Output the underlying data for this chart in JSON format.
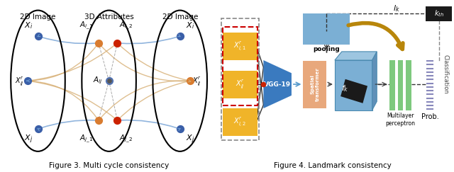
{
  "fig_width": 6.4,
  "fig_height": 2.43,
  "dpi": 100,
  "bg_color": "#ffffff",
  "left_title_text": "2D Image",
  "mid_title_text": "3D Attributes",
  "right_title_text": "2D Image",
  "fig3_caption": "Figure 3. Multi cycle consistency",
  "fig4_caption": "Figure 4. Landmark consistency",
  "ellipse_color": "#000000",
  "ellipse_lw": 1.5,
  "blue_dot": "#3a5fa8",
  "orange_dot": "#d97c30",
  "red_dot": "#cc2200",
  "gray_dot": "#555555",
  "arc_blue_color": "#6b9bd2",
  "arc_orange_color": "#d4a96a",
  "vgg_color": "#3a7abf",
  "spatial_color": "#e8a87c",
  "blue_box_color": "#7bafd4",
  "blue_box_top_color": "#7bafd4",
  "green_bar_color": "#7ec97e",
  "black_box_color": "#1a1a1a",
  "gold_arrow_color": "#b8860b",
  "dashed_color": "#444444",
  "input_box_color": "#f0b429",
  "red_dash_color": "#cc0000",
  "blue_tick_color": "#8888bb"
}
